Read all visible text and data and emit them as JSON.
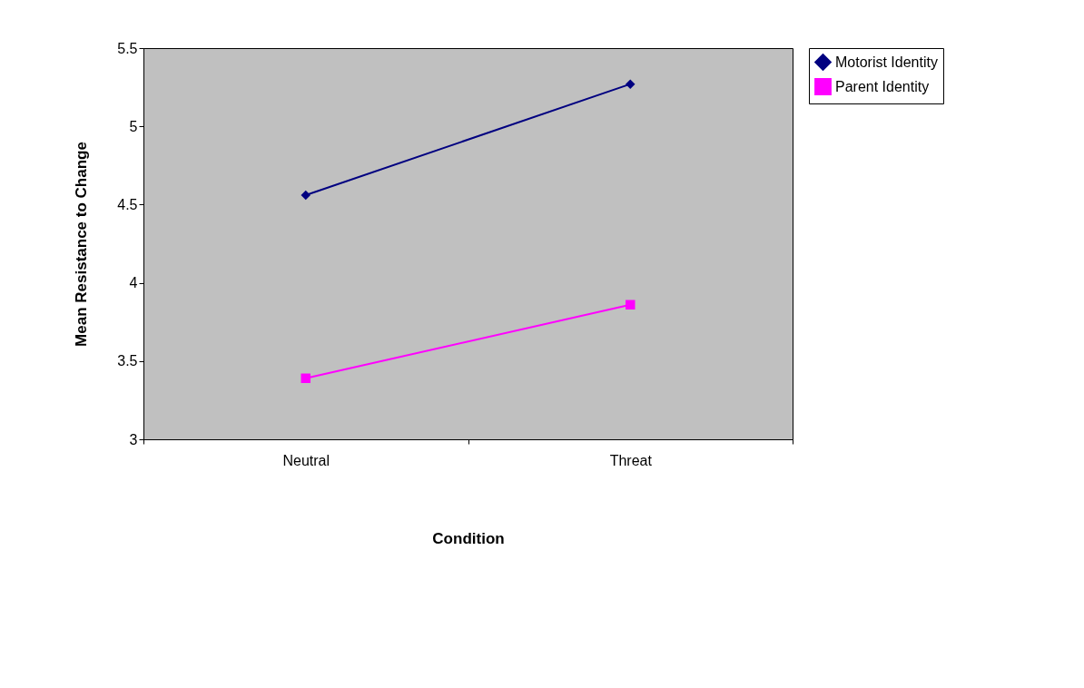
{
  "chart_data": {
    "type": "line",
    "xlabel": "Condition",
    "ylabel": "Mean Resistance to Change",
    "categories": [
      "Neutral",
      "Threat"
    ],
    "series": [
      {
        "name": "Motorist Identity",
        "color": "#000080",
        "marker": "diamond",
        "values": [
          4.56,
          5.27
        ]
      },
      {
        "name": "Parent Identity",
        "color": "#ff00ff",
        "marker": "square",
        "values": [
          3.39,
          3.86
        ]
      }
    ],
    "ylim": [
      3,
      5.5
    ],
    "yticks": [
      3,
      3.5,
      4,
      4.5,
      5,
      5.5
    ],
    "grid": false,
    "legend": "right",
    "line_style": "solid"
  }
}
